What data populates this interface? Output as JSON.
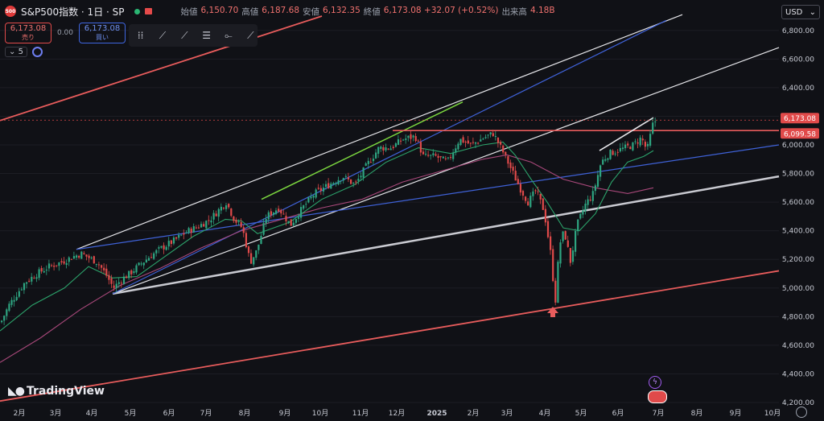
{
  "header": {
    "symbol_badge": "500",
    "title": "S&P500指数 · 1日 · SP",
    "ohlc": [
      {
        "key": "始値",
        "value": "6,150.70"
      },
      {
        "key": "高値",
        "value": "6,187.68"
      },
      {
        "key": "安値",
        "value": "6,132.35"
      },
      {
        "key": "終値",
        "value": "6,173.08 +32.07 (+0.52%)"
      },
      {
        "key": "出来高",
        "value": "4.18B"
      }
    ],
    "currency": "USD"
  },
  "trade": {
    "sell_price": "6,173.08",
    "sell_label": "売り",
    "spread": "0.00",
    "buy_price": "6,173.08",
    "buy_label": "買い"
  },
  "indicator": {
    "label": "5"
  },
  "branding": {
    "name": "TradingView"
  },
  "colors": {
    "up": "#2ea581",
    "down": "#e04a4a",
    "resistance": "#e85c5c",
    "channel": "#e6e6ea",
    "blue_trend": "#3f62d8",
    "green_trend": "#7bd63f",
    "ma_short": "#2ca36b",
    "ma_long": "#a8487a",
    "support": "#c9cad1"
  },
  "chart_data": {
    "type": "candlestick",
    "ylim": [
      4200,
      6900
    ],
    "y_ticks": [
      4200,
      4400,
      4600,
      4800,
      5000,
      5200,
      5400,
      5600,
      5800,
      6000,
      6200,
      6400,
      6600,
      6800
    ],
    "y_tick_labels": [
      "4,200.00",
      "4,400.00",
      "4,600.00",
      "4,800.00",
      "5,000.00",
      "5,200.00",
      "5,400.00",
      "5,600.00",
      "5,800.00",
      "6,000.00",
      "6,200.00",
      "6,400.00",
      "6,600.00",
      "6,800.00"
    ],
    "x_labels": [
      "2月",
      "3月",
      "4月",
      "5月",
      "6月",
      "7月",
      "8月",
      "9月",
      "10月",
      "11月",
      "12月",
      "2025",
      "2月",
      "3月",
      "4月",
      "5月",
      "6月",
      "7月",
      "8月",
      "9月",
      "10月"
    ],
    "price_markers": [
      {
        "label": "6,173.08",
        "value": 6173.08
      },
      {
        "label": "6,099.58",
        "value": 6099.58
      }
    ],
    "close_path": [
      [
        0,
        4760
      ],
      [
        10,
        4880
      ],
      [
        20,
        4960
      ],
      [
        30,
        5040
      ],
      [
        45,
        5100
      ],
      [
        60,
        5150
      ],
      [
        75,
        5180
      ],
      [
        90,
        5220
      ],
      [
        100,
        5240
      ],
      [
        110,
        5210
      ],
      [
        120,
        5180
      ],
      [
        130,
        5100
      ],
      [
        140,
        5000
      ],
      [
        150,
        5060
      ],
      [
        160,
        5100
      ],
      [
        170,
        5150
      ],
      [
        185,
        5220
      ],
      [
        200,
        5280
      ],
      [
        215,
        5330
      ],
      [
        230,
        5390
      ],
      [
        245,
        5430
      ],
      [
        260,
        5480
      ],
      [
        270,
        5540
      ],
      [
        280,
        5600
      ],
      [
        290,
        5480
      ],
      [
        300,
        5420
      ],
      [
        310,
        5180
      ],
      [
        318,
        5260
      ],
      [
        330,
        5500
      ],
      [
        345,
        5560
      ],
      [
        360,
        5440
      ],
      [
        375,
        5560
      ],
      [
        390,
        5660
      ],
      [
        410,
        5730
      ],
      [
        425,
        5780
      ],
      [
        440,
        5720
      ],
      [
        455,
        5860
      ],
      [
        470,
        5980
      ],
      [
        485,
        5980
      ],
      [
        500,
        6040
      ],
      [
        515,
        6060
      ],
      [
        525,
        5920
      ],
      [
        540,
        5920
      ],
      [
        555,
        5880
      ],
      [
        570,
        6040
      ],
      [
        585,
        6000
      ],
      [
        600,
        6050
      ],
      [
        612,
        6080
      ],
      [
        625,
        5940
      ],
      [
        635,
        5820
      ],
      [
        645,
        5700
      ],
      [
        655,
        5600
      ],
      [
        665,
        5680
      ],
      [
        675,
        5540
      ],
      [
        683,
        5250
      ],
      [
        689,
        4900
      ],
      [
        694,
        5300
      ],
      [
        700,
        5400
      ],
      [
        708,
        5180
      ],
      [
        716,
        5440
      ],
      [
        726,
        5580
      ],
      [
        736,
        5660
      ],
      [
        746,
        5880
      ],
      [
        756,
        5940
      ],
      [
        766,
        5960
      ],
      [
        776,
        5980
      ],
      [
        786,
        6000
      ],
      [
        796,
        6050
      ],
      [
        803,
        5960
      ],
      [
        810,
        6140
      ],
      [
        814,
        6173
      ]
    ],
    "ma_short_path": [
      [
        0,
        4700
      ],
      [
        40,
        4880
      ],
      [
        80,
        5000
      ],
      [
        110,
        5150
      ],
      [
        140,
        5070
      ],
      [
        170,
        5080
      ],
      [
        200,
        5200
      ],
      [
        240,
        5360
      ],
      [
        280,
        5480
      ],
      [
        300,
        5470
      ],
      [
        320,
        5380
      ],
      [
        340,
        5420
      ],
      [
        360,
        5460
      ],
      [
        400,
        5620
      ],
      [
        440,
        5720
      ],
      [
        480,
        5880
      ],
      [
        520,
        5980
      ],
      [
        560,
        5940
      ],
      [
        600,
        6000
      ],
      [
        625,
        6020
      ],
      [
        640,
        5930
      ],
      [
        660,
        5760
      ],
      [
        680,
        5600
      ],
      [
        700,
        5420
      ],
      [
        720,
        5400
      ],
      [
        740,
        5520
      ],
      [
        760,
        5740
      ],
      [
        780,
        5880
      ],
      [
        800,
        5920
      ],
      [
        812,
        5960
      ]
    ],
    "ma_long_path": [
      [
        0,
        4480
      ],
      [
        50,
        4650
      ],
      [
        100,
        4850
      ],
      [
        150,
        5020
      ],
      [
        200,
        5140
      ],
      [
        250,
        5280
      ],
      [
        300,
        5400
      ],
      [
        350,
        5480
      ],
      [
        400,
        5560
      ],
      [
        450,
        5620
      ],
      [
        500,
        5740
      ],
      [
        550,
        5820
      ],
      [
        600,
        5900
      ],
      [
        630,
        5930
      ],
      [
        660,
        5880
      ],
      [
        700,
        5760
      ],
      [
        740,
        5700
      ],
      [
        780,
        5660
      ],
      [
        812,
        5700
      ]
    ]
  }
}
